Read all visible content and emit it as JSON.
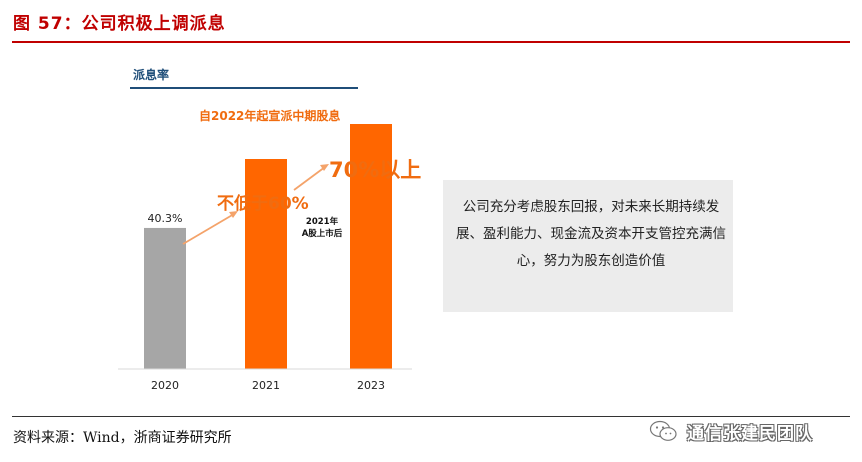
{
  "figure_title": "图 57：公司积极上调派息",
  "panel_label": "派息率",
  "subtitle": "自2022年起宣派中期股息",
  "annotations": {
    "bar_2021_note": "不低于60%",
    "bar_2023_note": "70%以上",
    "listing_note_line1": "2021年",
    "listing_note_line2": "A股上市后"
  },
  "side_box_text": "公司充分考虑股东回报，对未来长期持续发展、盈利能力、现金流及资本开支管控充满信心，努力为股东创造价值",
  "source": "资料来源：Wind，浙商证券研究所",
  "watermark": "通信张建民团队",
  "colors": {
    "title_red": "#c00000",
    "accent_orange": "#f06c10",
    "bar_gray": "#a6a6a6",
    "bar_orange": "#ff6600",
    "panel_blue": "#1f4e79",
    "box_gray": "#ececec"
  },
  "chart_data": {
    "type": "bar",
    "categories": [
      "2020",
      "2021",
      "2023"
    ],
    "values": [
      40.3,
      60,
      70
    ],
    "value_labels": [
      "40.3%",
      "",
      ""
    ],
    "bar_colors": [
      "#a6a6a6",
      "#ff6600",
      "#ff6600"
    ],
    "ylim": [
      0,
      80
    ],
    "grid": false,
    "legend": "none",
    "xlabel": "",
    "ylabel": ""
  }
}
